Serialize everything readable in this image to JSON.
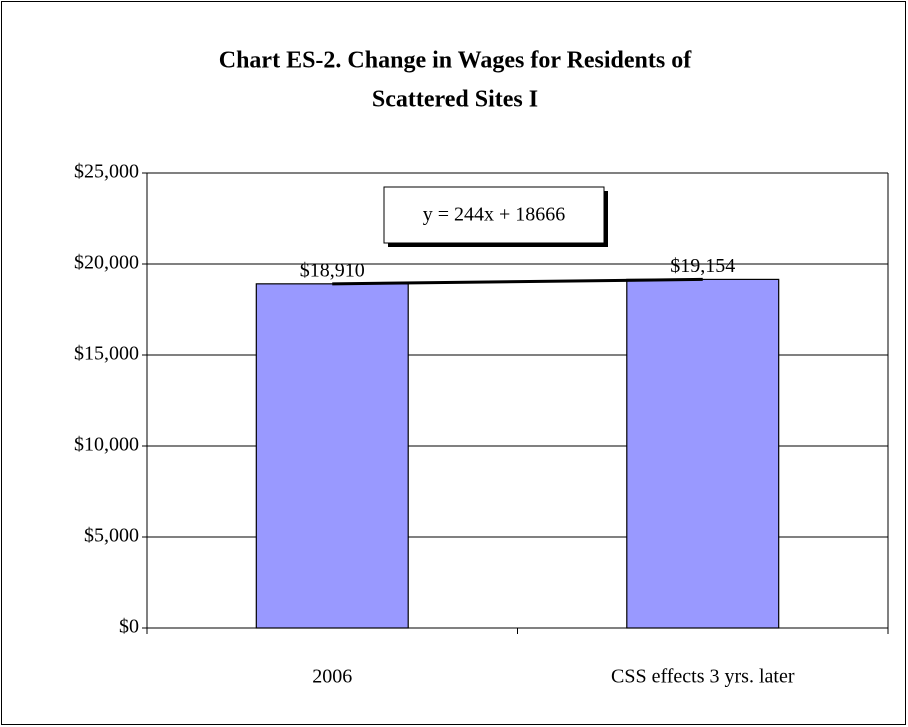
{
  "chart_data": {
    "type": "bar",
    "title": [
      "Chart ES-2.  Change in Wages for Residents of",
      "Scattered Sites I"
    ],
    "categories": [
      "2006",
      "CSS effects 3 yrs. later"
    ],
    "values": [
      18910,
      19154
    ],
    "value_labels": [
      "$18,910",
      "$19,154"
    ],
    "color": "#9999ff",
    "ylim": [
      0,
      25000
    ],
    "yticks": [
      {
        "value": 0,
        "label": "$0"
      },
      {
        "value": 5000,
        "label": "$5,000"
      },
      {
        "value": 10000,
        "label": "$10,000"
      },
      {
        "value": 15000,
        "label": "$15,000"
      },
      {
        "value": 20000,
        "label": "$20,000"
      },
      {
        "value": 25000,
        "label": "$25,000"
      }
    ],
    "grid": true,
    "trendline": true,
    "annotation": "y = 244x + 18666"
  }
}
